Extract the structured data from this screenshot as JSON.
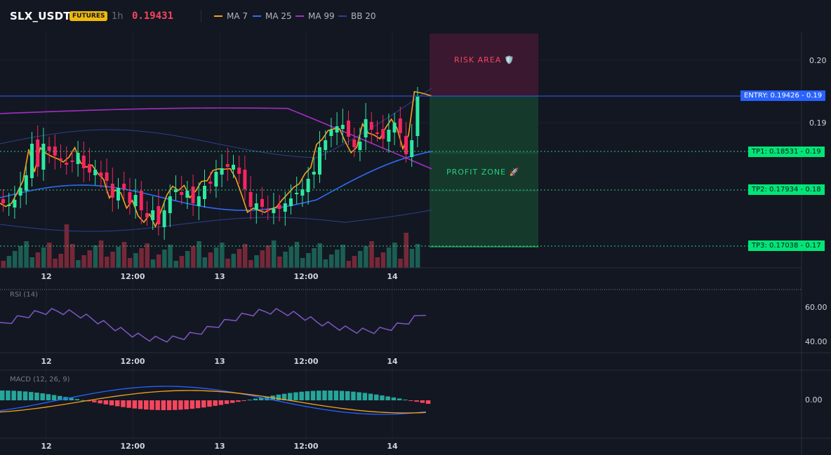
{
  "header": {
    "symbol": "SLX_USDT",
    "badge": "FUTURES",
    "timeframe": "1h",
    "price": "0.19431",
    "indicators": [
      {
        "label": "MA 7",
        "color": "#f7a21b"
      },
      {
        "label": "MA 25",
        "color": "#2f6bf5"
      },
      {
        "label": "MA 99",
        "color": "#a22fc4"
      },
      {
        "label": "BB 20",
        "color": "#2f3f8f"
      }
    ]
  },
  "zones": {
    "risk_label": "RISK AREA 🛡️",
    "profit_label": "PROFIT ZONE 🚀"
  },
  "levels": {
    "entry": {
      "label": "ENTRY: 0.19426",
      "axis": "0.19",
      "color": "#2962ff"
    },
    "tp1": {
      "label": "TP1: 0.18531",
      "axis": "0.19",
      "color": "#00e676"
    },
    "tp2": {
      "label": "TP2: 0.17934",
      "axis": "0.18",
      "color": "#00e676"
    },
    "tp3": {
      "label": "TP3: 0.17038",
      "axis": "0.17",
      "color": "#00e676"
    }
  },
  "price_axis": [
    "0.20",
    "0.19"
  ],
  "time_axis": [
    "12",
    "12:00",
    "13",
    "12:00",
    "14"
  ],
  "rsi": {
    "title": "RSI (14)",
    "ticks": [
      "60.00",
      "40.00"
    ]
  },
  "macd": {
    "title": "MACD (12, 26, 9)",
    "ticks": [
      "0.00"
    ]
  }
}
